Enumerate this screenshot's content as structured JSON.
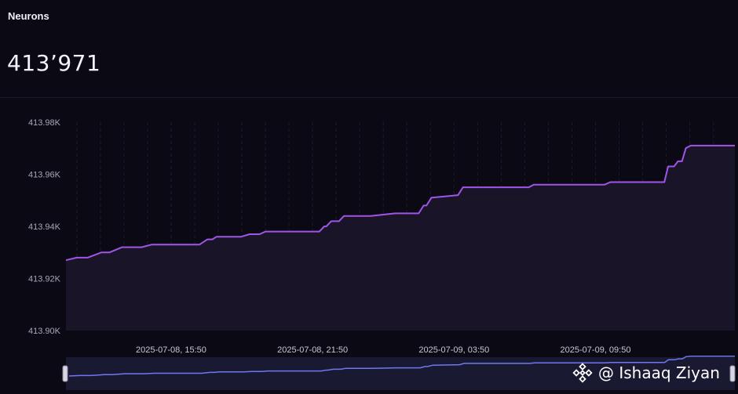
{
  "card": {
    "title": "Neurons",
    "value": "413’971"
  },
  "watermark": {
    "text": "@ Ishaaq Ziyan",
    "icon": "binance-logo-icon"
  },
  "colors": {
    "background": "#0b0a14",
    "line": "#a155e8",
    "area": "#1a1429",
    "navigator_line": "#6f78f0",
    "navigator_bg": "#1a1932"
  },
  "chart_data": {
    "type": "area",
    "title": "",
    "xlabel": "",
    "ylabel": "",
    "ylim": [
      413900,
      413980
    ],
    "y_ticks": [
      413900,
      413920,
      413940,
      413960,
      413980
    ],
    "y_tick_labels": [
      "413.90K",
      "413.92K",
      "413.94K",
      "413.96K",
      "413.98K"
    ],
    "x_tick_labels": [
      "2025-07-08, 15:50",
      "2025-07-08, 21:50",
      "2025-07-09, 03:50",
      "2025-07-09, 09:50"
    ],
    "x_range_hours": [
      -4.46,
      23.91
    ],
    "x_tick_hours": [
      0,
      6,
      12,
      18
    ],
    "grid": "vertical dashed",
    "navigator": true,
    "series": [
      {
        "x": [
          -4.46,
          -4.0,
          -3.54,
          -2.96,
          -2.62,
          -2.08,
          -1.25,
          -0.83,
          1.2,
          1.54,
          1.75,
          1.92,
          2.96,
          3.33,
          3.75,
          4.0,
          4.38,
          4.71,
          6.29,
          6.5,
          6.58,
          6.79,
          7.12,
          7.33,
          8.46,
          9.5,
          10.5,
          10.71,
          10.83,
          11.04,
          12.17,
          12.38,
          15.17,
          15.38,
          18.38,
          18.63,
          20.92,
          21.08,
          21.33,
          21.5,
          21.67,
          21.83,
          22.04,
          22.21,
          23.54
        ],
        "y": [
          413927,
          413928,
          413928,
          413930,
          413930,
          413932,
          413932,
          413933,
          413933,
          413935,
          413935,
          413936,
          413936,
          413937,
          413937,
          413938,
          413938,
          413938,
          413938,
          413940,
          413940,
          413942,
          413942,
          413944,
          413944,
          413945,
          413945,
          413948,
          413948,
          413951,
          413952,
          413955,
          413955,
          413956,
          413956,
          413957,
          413957,
          413963,
          413963,
          413965,
          413965,
          413970,
          413971,
          413971,
          413971
        ]
      }
    ]
  }
}
